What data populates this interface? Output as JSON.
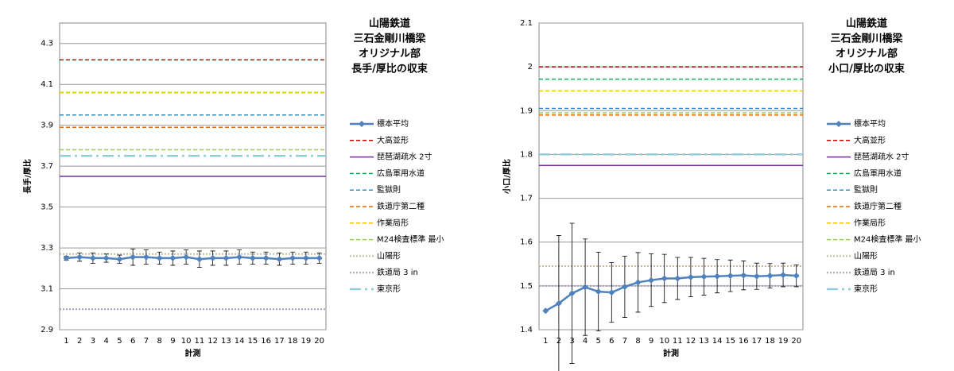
{
  "chart_data": [
    {
      "type": "line",
      "title": [
        "山陽鉄道",
        "三石金剛川橋梁",
        "オリジナル部",
        "長手/厚比の収束"
      ],
      "xlabel": "計測",
      "ylabel": "長手/厚比",
      "categories": [
        1,
        2,
        3,
        4,
        5,
        6,
        7,
        8,
        9,
        10,
        11,
        12,
        13,
        14,
        15,
        16,
        17,
        18,
        19,
        20
      ],
      "ylim": [
        2.9,
        4.4
      ],
      "yticks": [
        2.9,
        3.1,
        3.3,
        3.5,
        3.7,
        3.9,
        4.1,
        4.3
      ],
      "grid": true,
      "series": [
        {
          "name": "標本平均",
          "color": "#4f81bd",
          "style": "solid",
          "values": [
            3.25,
            3.255,
            3.25,
            3.25,
            3.245,
            3.255,
            3.255,
            3.25,
            3.25,
            3.255,
            3.245,
            3.25,
            3.25,
            3.255,
            3.25,
            3.25,
            3.245,
            3.25,
            3.25,
            3.25
          ],
          "errors": [
            0.01,
            0.02,
            0.025,
            0.02,
            0.02,
            0.04,
            0.035,
            0.03,
            0.035,
            0.035,
            0.04,
            0.035,
            0.035,
            0.035,
            0.03,
            0.03,
            0.03,
            0.03,
            0.03,
            0.025
          ]
        },
        {
          "name": "大高並形",
          "color": "#c00000",
          "style": "dashed",
          "value": 4.22
        },
        {
          "name": "琵琶湖疏水 2寸",
          "color": "#7030a0",
          "style": "solid",
          "value": 3.65
        },
        {
          "name": "広島軍用水道",
          "color": "#00b050",
          "style": "dashed",
          "value": 4.06
        },
        {
          "name": "監獄則",
          "color": "#2e8bc0",
          "style": "dashed",
          "value": 3.95
        },
        {
          "name": "鉄道庁第二種",
          "color": "#e46c0a",
          "style": "dashed",
          "value": 3.89
        },
        {
          "name": "作業局形",
          "color": "#ffc000",
          "style": "dashed",
          "value": 4.06
        },
        {
          "name": "M24検査標準 最小",
          "color": "#92d050",
          "style": "dashed",
          "value": 3.78
        },
        {
          "name": "山陽形",
          "color": "#c4bd97",
          "style": "dotted",
          "value": 3.27
        },
        {
          "name": "鉄道局 3 in",
          "color": "#a0a0c0",
          "style": "dotted",
          "value": 3.0
        },
        {
          "name": "東京形",
          "color": "#92cddc",
          "style": "dashdot",
          "value": 3.75
        }
      ]
    },
    {
      "type": "line",
      "title": [
        "山陽鉄道",
        "三石金剛川橋梁",
        "オリジナル部",
        "小口/厚比の収束"
      ],
      "xlabel": "計測",
      "ylabel": "小口/厚比",
      "categories": [
        1,
        2,
        3,
        4,
        5,
        6,
        7,
        8,
        9,
        10,
        11,
        12,
        13,
        14,
        15,
        16,
        17,
        18,
        19,
        20
      ],
      "ylim": [
        1.4,
        2.1
      ],
      "yticks": [
        1.4,
        1.5,
        1.6,
        1.7,
        1.8,
        1.9,
        2,
        2.1
      ],
      "grid": true,
      "series": [
        {
          "name": "標本平均",
          "color": "#4f81bd",
          "style": "solid",
          "values": [
            1.443,
            1.46,
            1.483,
            1.497,
            1.487,
            1.485,
            1.498,
            1.508,
            1.513,
            1.517,
            1.517,
            1.52,
            1.521,
            1.522,
            1.523,
            1.524,
            1.522,
            1.523,
            1.525,
            1.523
          ],
          "errors": [
            0,
            0.155,
            0.16,
            0.11,
            0.09,
            0.068,
            0.07,
            0.068,
            0.06,
            0.055,
            0.048,
            0.045,
            0.042,
            0.038,
            0.036,
            0.033,
            0.03,
            0.028,
            0.027,
            0.025
          ]
        },
        {
          "name": "大高並形",
          "color": "#c00000",
          "style": "dashed",
          "value": 2.0
        },
        {
          "name": "琵琶湖疏水 2寸",
          "color": "#7030a0",
          "style": "solid",
          "value": 1.775
        },
        {
          "name": "広島軍用水道",
          "color": "#00b050",
          "style": "dashed",
          "value": 1.972
        },
        {
          "name": "監獄則",
          "color": "#2e8bc0",
          "style": "dashed",
          "value": 1.905
        },
        {
          "name": "鉄道庁第二種",
          "color": "#e46c0a",
          "style": "dashed",
          "value": 1.89
        },
        {
          "name": "作業局形",
          "color": "#ffc000",
          "style": "dashed",
          "value": 1.945
        },
        {
          "name": "M24検査標準 最小",
          "color": "#92d050",
          "style": "dashed",
          "value": 1.895
        },
        {
          "name": "山陽形",
          "color": "#c4bd97",
          "style": "dotted",
          "value": 1.545
        },
        {
          "name": "鉄道局 3 in",
          "color": "#a0a0c0",
          "style": "dotted",
          "value": 1.5
        },
        {
          "name": "東京形",
          "color": "#92cddc",
          "style": "dashdot",
          "value": 1.8
        }
      ]
    }
  ]
}
